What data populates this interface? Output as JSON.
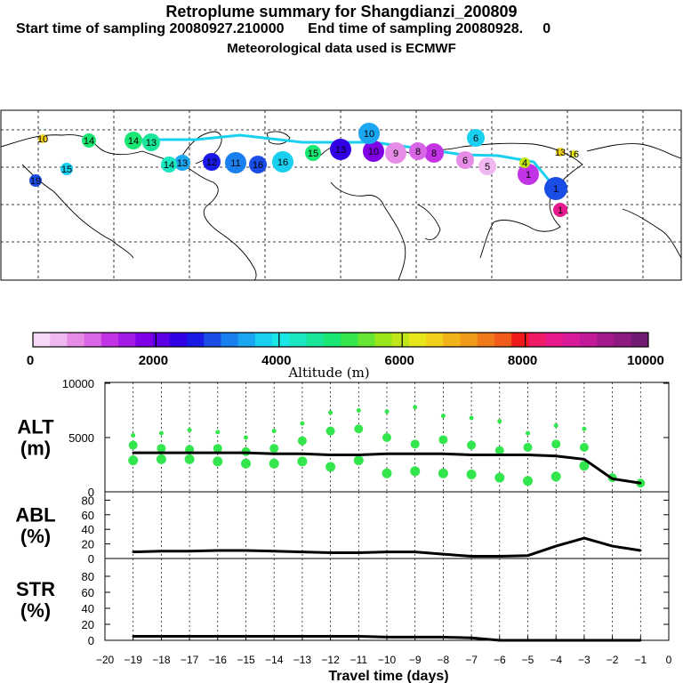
{
  "header": {
    "title": "Retroplume summary for Shangdianzi_200809",
    "sampling_line": "Start time of sampling 20080927.210000      End time of sampling 20080928.     0",
    "met_line": "Meteorological data used is ECMWF"
  },
  "colorbar": {
    "ticks": [
      "0",
      "2000",
      "4000",
      "6000",
      "8000",
      "10000"
    ],
    "label": "Altitude (m)",
    "colors": [
      "#f7d9f7",
      "#f0b8f0",
      "#e68ce6",
      "#d966e6",
      "#c233e6",
      "#a31ae6",
      "#8000e6",
      "#5c00e6",
      "#3300e6",
      "#1a1ae6",
      "#1a4de6",
      "#1a80f0",
      "#1aa6f0",
      "#1ad0f0",
      "#1ae6e6",
      "#1ae6bf",
      "#1ae699",
      "#1ae673",
      "#33e64d",
      "#66e633",
      "#99e61a",
      "#c0e61a",
      "#e6e61a",
      "#f0d01a",
      "#f0b31a",
      "#f09a1a",
      "#f07a1a",
      "#f05a1a",
      "#f01a1a",
      "#f01a66",
      "#e61a8c",
      "#d91a99",
      "#c21a99",
      "#a31a8c",
      "#8c1a80",
      "#731a73"
    ]
  },
  "map": {
    "number_labels": [
      "1",
      "2",
      "3",
      "4",
      "5",
      "6",
      "7",
      "8",
      "9",
      "10",
      "11",
      "12",
      "13",
      "14",
      "15",
      "16",
      "17",
      "18",
      "19"
    ]
  },
  "chart_data": [
    {
      "type": "line",
      "panel": "ALT",
      "ylabel": "ALT (m)",
      "ylim": [
        0,
        10000
      ],
      "yticks": [
        "0",
        "5000",
        "10000"
      ],
      "x": [
        -19,
        -18,
        -17,
        -16,
        -15,
        -14,
        -13,
        -12,
        -11,
        -10,
        -9,
        -8,
        -7,
        -6,
        -5,
        -4,
        -3,
        -2,
        -1
      ],
      "series": [
        {
          "name": "mean altitude",
          "values": [
            3600,
            3600,
            3600,
            3600,
            3600,
            3500,
            3500,
            3400,
            3400,
            3500,
            3500,
            3500,
            3400,
            3400,
            3400,
            3300,
            3000,
            1200,
            800
          ]
        }
      ],
      "scatter_clusters": [
        [
          5200,
          4300,
          2900
        ],
        [
          5400,
          4000,
          3000
        ],
        [
          5700,
          3900,
          3000
        ],
        [
          5500,
          4000,
          2800
        ],
        [
          5000,
          3700,
          2600
        ],
        [
          5600,
          4000,
          2600
        ],
        [
          6300,
          4700,
          2800
        ],
        [
          7300,
          5600,
          2300
        ],
        [
          7500,
          5800,
          2900
        ],
        [
          7400,
          5000,
          1700
        ],
        [
          7800,
          4400,
          1900
        ],
        [
          7000,
          4800,
          1700
        ],
        [
          6800,
          4300,
          1600
        ],
        [
          6500,
          3800,
          1300
        ],
        [
          5400,
          4100,
          1000
        ],
        [
          6100,
          4400,
          1400
        ],
        [
          5800,
          4100,
          2400
        ],
        [
          1300
        ],
        [
          800
        ]
      ]
    },
    {
      "type": "line",
      "panel": "ABL",
      "ylabel": "ABL (%)",
      "ylim": [
        0,
        100
      ],
      "yticks": [
        "0",
        "20",
        "40",
        "60",
        "80"
      ],
      "x": [
        -19,
        -18,
        -17,
        -16,
        -15,
        -14,
        -13,
        -12,
        -11,
        -10,
        -9,
        -8,
        -7,
        -6,
        -5,
        -4,
        -3,
        -2,
        -1
      ],
      "series": [
        {
          "name": "ABL fraction",
          "values": [
            9,
            10,
            10,
            11,
            11,
            10,
            9,
            8,
            8,
            9,
            9,
            6,
            3,
            3,
            4,
            17,
            28,
            17,
            11
          ]
        }
      ]
    },
    {
      "type": "line",
      "panel": "STR",
      "ylabel": "STR (%)",
      "ylim": [
        0,
        100
      ],
      "yticks": [
        "0",
        "20",
        "40",
        "60",
        "80"
      ],
      "x": [
        -19,
        -18,
        -17,
        -16,
        -15,
        -14,
        -13,
        -12,
        -11,
        -10,
        -9,
        -8,
        -7,
        -6,
        -5,
        -4,
        -3,
        -2,
        -1
      ],
      "series": [
        {
          "name": "stratosphere fraction",
          "values": [
            5,
            5,
            5,
            5,
            5,
            5,
            5,
            5,
            5,
            4,
            4,
            4,
            3,
            0,
            0,
            0,
            0,
            0,
            0
          ]
        }
      ],
      "xlabel": "Travel time (days)",
      "xticks": [
        "−20",
        "−19",
        "−18",
        "−17",
        "−16",
        "−15",
        "−14",
        "−13",
        "−12",
        "−11",
        "−10",
        "−9",
        "−8",
        "−7",
        "−6",
        "−5",
        "−4",
        "−3",
        "−2",
        "−1",
        "0"
      ]
    }
  ]
}
